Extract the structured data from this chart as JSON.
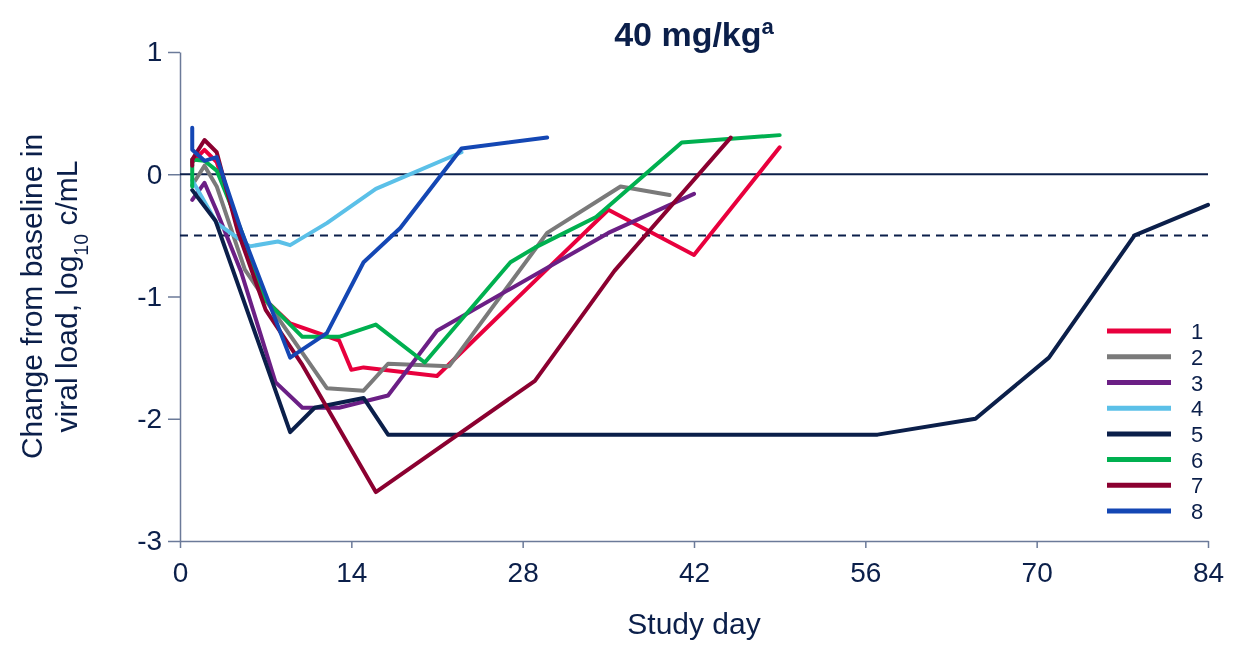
{
  "chart_data": {
    "type": "line",
    "title": "40 mg/kg$^{a}$",
    "xlabel": "Study day",
    "ylabel": "Change from baseline in viral load, log$_{10}$ c/mL",
    "xlim": [
      0,
      84
    ],
    "xticks": [
      0,
      14,
      28,
      42,
      56,
      70,
      84
    ],
    "ylim": [
      -3,
      1
    ],
    "yticks": [
      -3,
      -2,
      -1,
      0,
      1
    ],
    "grid": false,
    "legend": "bottom right",
    "marker": "none",
    "line_style": "solid",
    "ref_lines": [
      {
        "axis": "y",
        "value": 0,
        "line_style": "solid",
        "color": "#0b1f4a"
      },
      {
        "axis": "y",
        "value": -0.5,
        "line_style": "dashed",
        "color": "#0b1f4a"
      }
    ],
    "series": [
      {
        "name": "1",
        "color": "#e8003d",
        "x": [
          1,
          2,
          3,
          5,
          7,
          9,
          13,
          14,
          15,
          21,
          35,
          42,
          49
        ],
        "values": [
          0.1,
          0.2,
          0.1,
          -0.5,
          -1.03,
          -1.22,
          -1.36,
          -1.6,
          -1.58,
          -1.65,
          -0.29,
          -0.66,
          0.22
        ]
      },
      {
        "name": "2",
        "color": "#7a7a7a",
        "x": [
          1,
          2,
          3,
          5.3,
          7,
          12,
          15,
          17,
          22,
          30,
          36,
          40
        ],
        "values": [
          -0.09,
          0.07,
          -0.1,
          -0.78,
          -1.03,
          -1.75,
          -1.77,
          -1.55,
          -1.57,
          -0.48,
          -0.1,
          -0.17
        ]
      },
      {
        "name": "3",
        "color": "#6b1f85",
        "x": [
          1,
          2,
          3,
          5,
          7.8,
          10,
          13,
          17,
          21,
          35,
          42
        ],
        "values": [
          -0.21,
          -0.07,
          -0.3,
          -0.8,
          -1.7,
          -1.91,
          -1.91,
          -1.81,
          -1.28,
          -0.48,
          -0.16
        ]
      },
      {
        "name": "4",
        "color": "#5bc0e8",
        "x": [
          1,
          3,
          5.7,
          8,
          9,
          12,
          16,
          23
        ],
        "values": [
          -0.05,
          -0.4,
          -0.59,
          -0.55,
          -0.58,
          -0.4,
          -0.12,
          0.18
        ]
      },
      {
        "name": "5",
        "color": "#0b1f4a",
        "x": [
          1,
          2.9,
          9,
          11,
          15,
          17,
          57,
          65,
          71,
          78,
          84
        ],
        "values": [
          -0.13,
          -0.38,
          -2.11,
          -1.91,
          -1.83,
          -2.13,
          -2.13,
          -2,
          -1.5,
          -0.5,
          -0.25
        ]
      },
      {
        "name": "6",
        "color": "#00b050",
        "x": [
          1,
          1,
          2,
          3,
          5,
          7,
          9,
          10,
          13,
          16,
          20,
          27,
          29,
          34,
          41,
          49
        ],
        "values": [
          -0.1,
          0.12,
          0.11,
          0.03,
          -0.46,
          -1.03,
          -1.23,
          -1.33,
          -1.33,
          -1.23,
          -1.54,
          -0.72,
          -0.6,
          -0.35,
          0.26,
          0.32
        ]
      },
      {
        "name": "7",
        "color": "#8b0030",
        "x": [
          1,
          1,
          2,
          3,
          4.7,
          7,
          10,
          16,
          29,
          35.5,
          45
        ],
        "values": [
          0.07,
          0.12,
          0.28,
          0.18,
          -0.46,
          -1.11,
          -1.56,
          -2.6,
          -1.69,
          -0.79,
          0.3
        ]
      },
      {
        "name": "8",
        "color": "#1447b4",
        "x": [
          1,
          1,
          2,
          3,
          5,
          9,
          12,
          15,
          18,
          23,
          30
        ],
        "values": [
          0.38,
          0.2,
          0.11,
          0.14,
          -0.46,
          -1.5,
          -1.3,
          -0.72,
          -0.44,
          0.21,
          0.3
        ]
      }
    ]
  }
}
